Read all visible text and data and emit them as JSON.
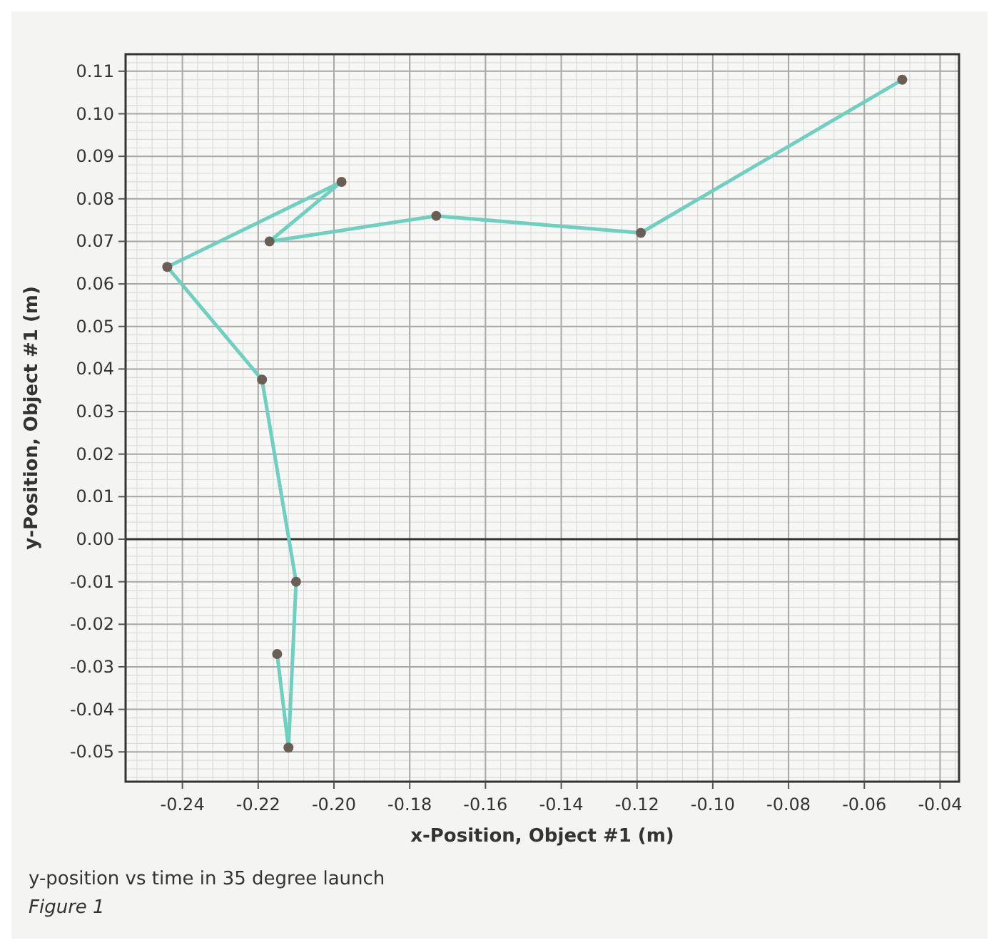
{
  "chart_data": {
    "type": "line",
    "xlabel": "x-Position, Object #1 (m)",
    "ylabel": "y-Position, Object #1 (m)",
    "annotations": [
      "y-position vs time in 35 degree launch",
      "Figure 1"
    ],
    "series": [
      {
        "color": "#6fd0c0",
        "x": [
          -0.05,
          -0.119,
          -0.173,
          -0.217,
          -0.198,
          -0.244,
          -0.219,
          -0.21,
          -0.212,
          -0.215
        ],
        "values": [
          0.108,
          0.072,
          0.076,
          0.07,
          0.084,
          0.064,
          0.0375,
          -0.01,
          -0.049,
          -0.027
        ]
      }
    ],
    "xlim": [
      -0.255,
      -0.035
    ],
    "ylim": [
      -0.057,
      0.114
    ],
    "xticks": [
      -0.24,
      -0.22,
      {
        "value": -0.2,
        "label": "-0.20"
      },
      -0.18,
      -0.16,
      -0.14,
      -0.12,
      {
        "value": -0.1,
        "label": "-0.10"
      },
      -0.08,
      -0.06,
      -0.04
    ],
    "yticks": [
      {
        "value": -0.05,
        "label": "-0.05"
      },
      {
        "value": -0.04,
        "label": "-0.04"
      },
      {
        "value": -0.03,
        "label": "-0.03"
      },
      {
        "value": -0.02,
        "label": "-0.02"
      },
      {
        "value": -0.01,
        "label": "-0.01"
      },
      {
        "value": 0,
        "label": "0.00"
      },
      {
        "value": 0.01,
        "label": "0.01"
      },
      {
        "value": 0.02,
        "label": "0.02"
      },
      {
        "value": 0.03,
        "label": "0.03"
      },
      {
        "value": 0.04,
        "label": "0.04"
      },
      {
        "value": 0.05,
        "label": "0.05"
      },
      {
        "value": 0.06,
        "label": "0.06"
      },
      {
        "value": 0.07,
        "label": "0.07"
      },
      {
        "value": 0.08,
        "label": "0.08"
      },
      {
        "value": 0.09,
        "label": "0.09"
      },
      {
        "value": 0.1,
        "label": "0.10"
      },
      {
        "value": 0.11,
        "label": "0.11"
      }
    ],
    "ref_lines": [
      {
        "axis": "y",
        "value": 0,
        "color": "#333333"
      }
    ],
    "grid": true,
    "marker": "circle",
    "line_style": "solid"
  }
}
